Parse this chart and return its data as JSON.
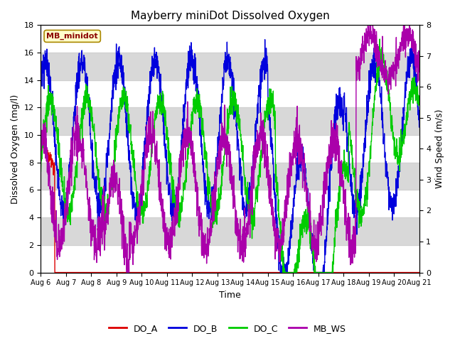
{
  "title": "Mayberry miniDot Dissolved Oxygen",
  "xlabel": "Time",
  "ylabel_left": "Dissolved Oxygen (mg/l)",
  "ylabel_right": "Wind Speed (m/s)",
  "ylim_left": [
    0,
    18
  ],
  "ylim_right": [
    0,
    8.0
  ],
  "yticks_left": [
    0,
    2,
    4,
    6,
    8,
    10,
    12,
    14,
    16,
    18
  ],
  "yticks_right": [
    0.0,
    1.0,
    2.0,
    3.0,
    4.0,
    5.0,
    6.0,
    7.0,
    8.0
  ],
  "xlim_days": [
    0,
    15
  ],
  "xtick_labels": [
    "Aug 6",
    "Aug 7",
    "Aug 8",
    "Aug 9",
    "Aug 10",
    "Aug 11",
    "Aug 12",
    "Aug 13",
    "Aug 14",
    "Aug 15",
    "Aug 16",
    "Aug 17",
    "Aug 18",
    "Aug 19",
    "Aug 20",
    "Aug 21"
  ],
  "colors": {
    "DO_A": "#dd0000",
    "DO_B": "#0000dd",
    "DO_C": "#00cc00",
    "MB_WS": "#aa00aa"
  },
  "legend_label": "MB_minidot",
  "legend_box_facecolor": "#ffffcc",
  "legend_box_edgecolor": "#aa8800",
  "text_color": "#8b0000",
  "bg_band_color": "#d8d8d8",
  "bg_outer": "#ffffff",
  "grid_color": "#cccccc",
  "title_fontsize": 11,
  "axis_label_fontsize": 9,
  "tick_fontsize": 8,
  "xtick_fontsize": 7
}
